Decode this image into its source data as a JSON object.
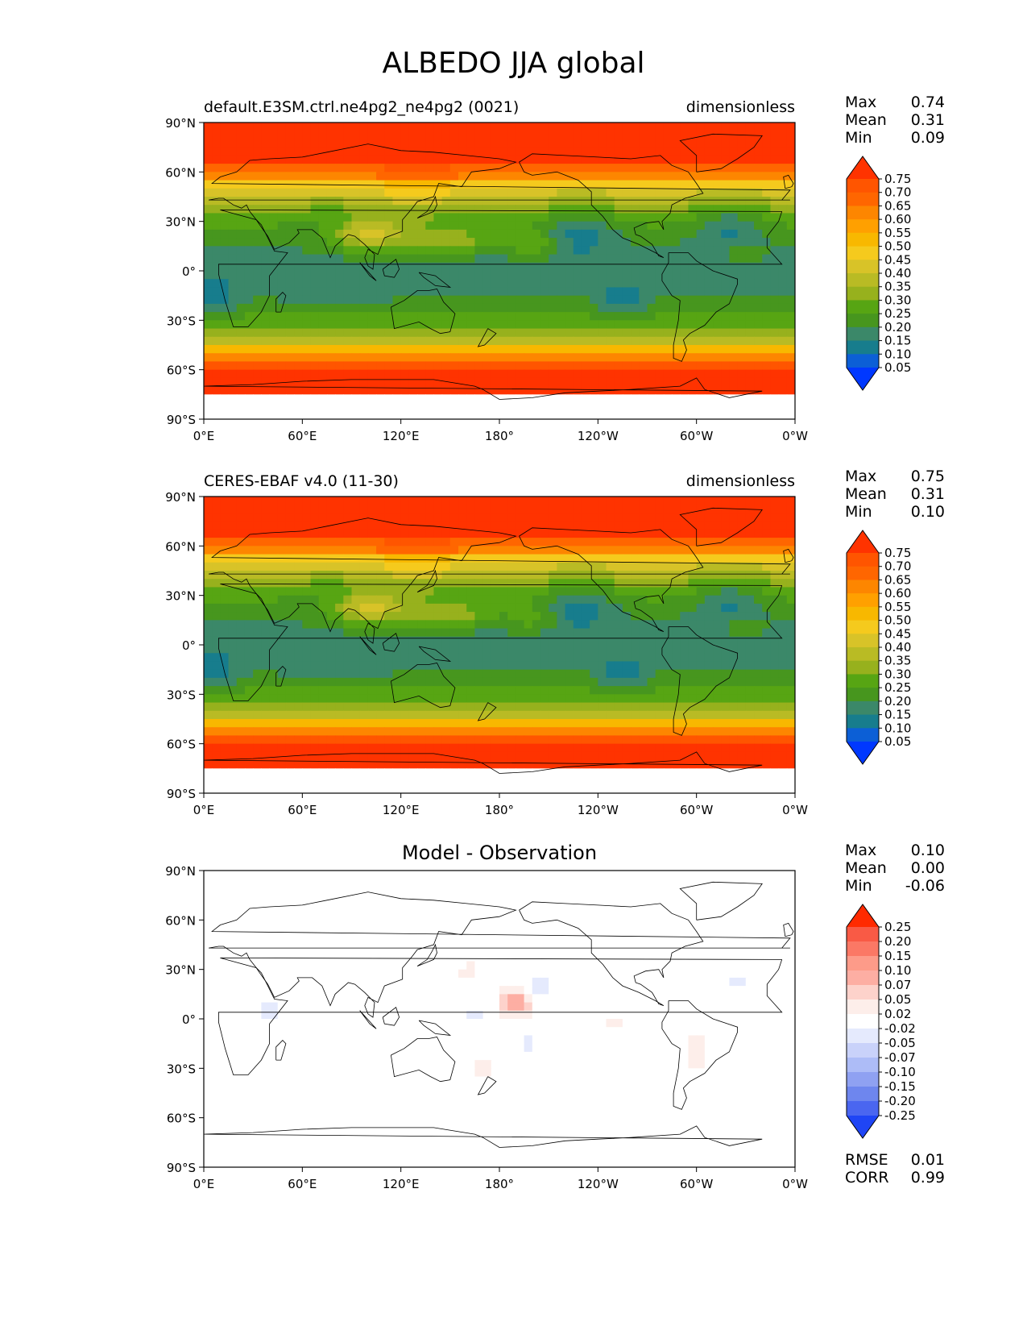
{
  "title": "ALBEDO JJA global",
  "axes": {
    "lat_labels": [
      "90°N",
      "60°N",
      "30°N",
      "0°",
      "30°S",
      "60°S",
      "90°S"
    ],
    "lon_labels": [
      "0°E",
      "60°E",
      "120°E",
      "180°",
      "120°W",
      "60°W",
      "0°W"
    ]
  },
  "panels": [
    {
      "left_title": "default.E3SM.ctrl.ne4pg2_ne4pg2 (0021)",
      "right_title": "dimensionless",
      "center_title": "",
      "stats": [
        {
          "label": "Max",
          "value": "0.74"
        },
        {
          "label": "Mean",
          "value": "0.31"
        },
        {
          "label": "Min",
          "value": "0.09"
        }
      ],
      "colorbar": {
        "labels": [
          "0.75",
          "0.70",
          "0.65",
          "0.60",
          "0.55",
          "0.50",
          "0.45",
          "0.40",
          "0.35",
          "0.30",
          "0.25",
          "0.20",
          "0.15",
          "0.10",
          "0.05"
        ],
        "colors": [
          "#ff3300",
          "#ff5500",
          "#ff6600",
          "#fd8600",
          "#ffa000",
          "#f8b800",
          "#f5ca1d",
          "#d8c328",
          "#b9bb24",
          "#97b11d",
          "#57a513",
          "#47961e",
          "#3b8869",
          "#177d8d",
          "#0c5fd6",
          "#0038ff"
        ]
      }
    },
    {
      "left_title": "CERES-EBAF v4.0 (11-30)",
      "right_title": "dimensionless",
      "center_title": "",
      "stats": [
        {
          "label": "Max",
          "value": "0.75"
        },
        {
          "label": "Mean",
          "value": "0.31"
        },
        {
          "label": "Min",
          "value": "0.10"
        }
      ],
      "colorbar": {
        "labels": [
          "0.75",
          "0.70",
          "0.65",
          "0.60",
          "0.55",
          "0.50",
          "0.45",
          "0.40",
          "0.35",
          "0.30",
          "0.25",
          "0.20",
          "0.15",
          "0.10",
          "0.05"
        ],
        "colors": [
          "#ff3300",
          "#ff5500",
          "#ff6600",
          "#fd8600",
          "#ffa000",
          "#f8b800",
          "#f5ca1d",
          "#d8c328",
          "#b9bb24",
          "#97b11d",
          "#57a513",
          "#47961e",
          "#3b8869",
          "#177d8d",
          "#0c5fd6",
          "#0038ff"
        ]
      }
    },
    {
      "left_title": "",
      "right_title": "",
      "center_title": "Model - Observation",
      "stats": [
        {
          "label": "Max",
          "value": "0.10"
        },
        {
          "label": "Mean",
          "value": "0.00"
        },
        {
          "label": "Min",
          "value": "-0.06"
        }
      ],
      "bottom_stats": [
        {
          "label": "RMSE",
          "value": "0.01"
        },
        {
          "label": "CORR",
          "value": "0.99"
        }
      ],
      "colorbar": {
        "labels": [
          "0.25",
          "0.20",
          "0.15",
          "0.10",
          "0.07",
          "0.05",
          "0.02",
          "-0.02",
          "-0.05",
          "-0.07",
          "-0.10",
          "-0.15",
          "-0.20",
          "-0.25"
        ],
        "colors": [
          "#ff2a00",
          "#f95a45",
          "#fb7865",
          "#fd9b89",
          "#fdaea3",
          "#fdd2cb",
          "#fdeeea",
          "#ffffff",
          "#e5eafd",
          "#c9d2fa",
          "#adbcf7",
          "#8fa1f2",
          "#6e86ee",
          "#4a66f0",
          "#1f45f5"
        ]
      }
    }
  ]
}
